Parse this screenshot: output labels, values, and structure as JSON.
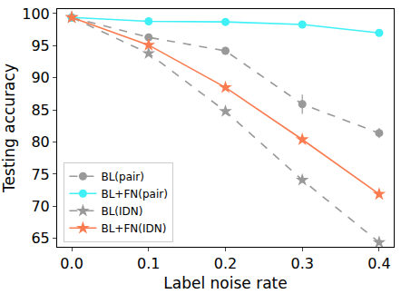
{
  "chart_data": {
    "type": "line",
    "x_label": "Label noise rate",
    "y_label": "Testing accuracy",
    "x": [
      0,
      0.1,
      0.2,
      0.3,
      0.4
    ],
    "xlim": [
      -0.019,
      0.419
    ],
    "xticks": [
      {
        "value": 0,
        "label": "0.0"
      },
      {
        "value": 0.1,
        "label": "0.1"
      },
      {
        "value": 0.2,
        "label": "0.2"
      },
      {
        "value": 0.3,
        "label": "0.3"
      },
      {
        "value": 0.4,
        "label": "0.4"
      }
    ],
    "ylim": [
      63.7,
      100.7
    ],
    "yticks": [
      65,
      70,
      75,
      80,
      85,
      90,
      95,
      100
    ],
    "grid": false,
    "legend": "lower left",
    "series": [
      {
        "name": "BL(pair)",
        "color": "#999999",
        "marker": "circle",
        "line_style": "dashed",
        "values": [
          99.4,
          96.3,
          94.2,
          85.9,
          81.4
        ],
        "error": [
          0.2,
          0.3,
          0.6,
          1.5,
          0.8
        ]
      },
      {
        "name": "BL+FN(pair)",
        "color": "#3ff0f7",
        "marker": "circle",
        "line_style": "solid",
        "values": [
          99.4,
          98.8,
          98.7,
          98.3,
          97.0
        ],
        "error": [
          0.1,
          0.1,
          0.1,
          0.2,
          0.3
        ]
      },
      {
        "name": "BL(IDN)",
        "color": "#999999",
        "marker": "star",
        "line_style": "dashed",
        "values": [
          99.4,
          93.8,
          84.8,
          74.1,
          64.4
        ],
        "error": [
          0.2,
          0.3,
          0.3,
          0.4,
          0.4
        ]
      },
      {
        "name": "BL+FN(IDN)",
        "color": "#f97b4f",
        "marker": "star",
        "line_style": "solid",
        "values": [
          99.4,
          95.1,
          88.5,
          80.4,
          71.9
        ],
        "error": [
          0.1,
          0.2,
          0.3,
          0.3,
          0.4
        ]
      }
    ]
  }
}
